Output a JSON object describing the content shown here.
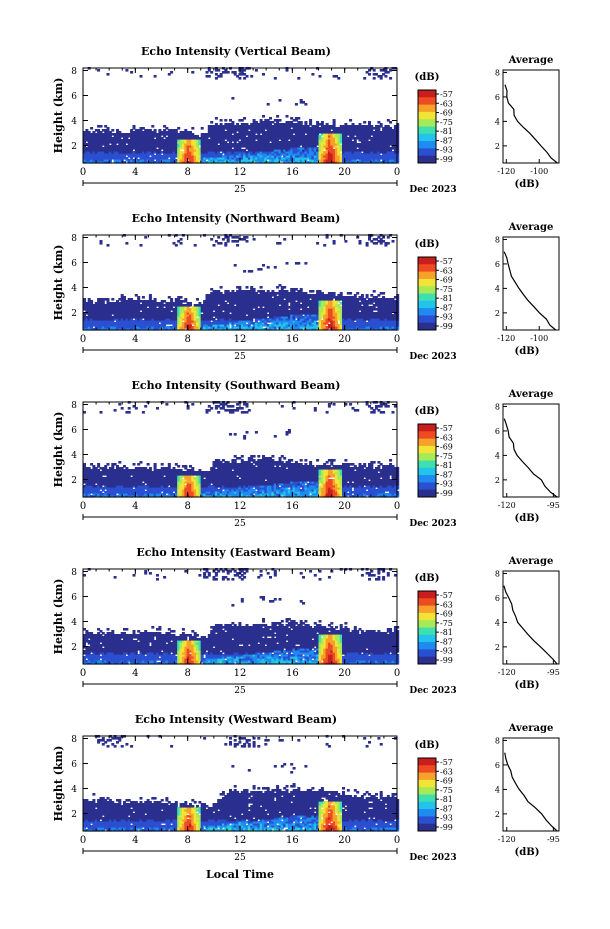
{
  "figure": {
    "date_label": "Dec 2023",
    "day_label": "25",
    "xlabel": "Local Time",
    "colorbar_unit": "(dB)",
    "colorbar_ticks": [
      "-57",
      "-63",
      "-69",
      "-75",
      "-81",
      "-87",
      "-93",
      "-99"
    ],
    "colorscale": [
      "#2b2f8e",
      "#2a4fd0",
      "#1f8bf0",
      "#22c4ec",
      "#3fe0b0",
      "#a7ea57",
      "#f2e437",
      "#f7a12a",
      "#ef4b22",
      "#c81e1e"
    ]
  },
  "chart_data": [
    {
      "type": "heatmap",
      "title": "Echo Intensity (Vertical Beam)",
      "ylabel": "Height (km)",
      "x_ticks": [
        "0",
        "4",
        "8",
        "12",
        "16",
        "20",
        "0"
      ],
      "y_ticks": [
        "2",
        "4",
        "6",
        "8"
      ],
      "xlim": [
        0,
        24
      ],
      "ylim": [
        0.6,
        8.2
      ],
      "clim": [
        -99,
        -57
      ],
      "cloud_top_km": [
        [
          0,
          3.0
        ],
        [
          6,
          3.1
        ],
        [
          9,
          2.8
        ],
        [
          10,
          3.6
        ],
        [
          15,
          3.9
        ],
        [
          20,
          3.5
        ],
        [
          24,
          3.4
        ]
      ],
      "intense_cores": [
        {
          "hour": 8.0,
          "top_km": 2.5
        },
        {
          "hour": 18.8,
          "top_km": 3.0
        }
      ],
      "upper_echo_hours": [
        [
          9,
          12.5
        ],
        [
          21.5,
          23.5
        ]
      ],
      "avg_profile": {
        "title": "Average",
        "xlabel": "(dB)",
        "x_ticks": [
          "-120",
          "-100"
        ],
        "xlim": [
          -122,
          -88
        ],
        "y_ticks": [
          "2",
          "4",
          "6",
          "8"
        ],
        "height_km": [
          0.6,
          1.0,
          1.5,
          2.0,
          2.5,
          3.0,
          3.5,
          4.0,
          4.5,
          5.0,
          5.5,
          6.0,
          6.5,
          7.0
        ],
        "value_db": [
          -89,
          -92,
          -95,
          -99,
          -102,
          -106,
          -109,
          -113,
          -115,
          -116,
          -118,
          -119,
          -120,
          -121
        ]
      }
    },
    {
      "type": "heatmap",
      "title": "Echo Intensity (Northward Beam)",
      "ylabel": "Height (km)",
      "x_ticks": [
        "0",
        "4",
        "8",
        "12",
        "16",
        "20",
        "0"
      ],
      "y_ticks": [
        "2",
        "4",
        "6",
        "8"
      ],
      "xlim": [
        0,
        24
      ],
      "ylim": [
        0.6,
        8.2
      ],
      "clim": [
        -99,
        -57
      ],
      "cloud_top_km": [
        [
          0,
          2.9
        ],
        [
          6,
          2.9
        ],
        [
          9,
          2.6
        ],
        [
          9.5,
          3.5
        ],
        [
          16,
          3.7
        ],
        [
          21,
          3.2
        ],
        [
          24,
          3.0
        ]
      ],
      "intense_cores": [
        {
          "hour": 8.0,
          "top_km": 2.4
        },
        {
          "hour": 18.8,
          "top_km": 2.9
        }
      ],
      "upper_echo_hours": [
        [
          10,
          12.5
        ],
        [
          21.5,
          23.5
        ]
      ],
      "avg_profile": {
        "title": "Average",
        "xlabel": "(dB)",
        "x_ticks": [
          "-120",
          "-100"
        ],
        "xlim": [
          -122,
          -88
        ],
        "y_ticks": [
          "2",
          "4",
          "6",
          "8"
        ],
        "height_km": [
          0.6,
          1.0,
          1.5,
          2.0,
          2.5,
          3.0,
          3.5,
          4.0,
          4.5,
          5.0,
          5.5,
          6.0,
          6.5,
          7.0
        ],
        "value_db": [
          -90,
          -93,
          -96,
          -100,
          -103,
          -107,
          -110,
          -113,
          -115,
          -117,
          -118,
          -119,
          -120,
          -121
        ]
      }
    },
    {
      "type": "heatmap",
      "title": "Echo Intensity (Southward Beam)",
      "ylabel": "Height (km)",
      "x_ticks": [
        "0",
        "4",
        "8",
        "12",
        "16",
        "20",
        "0"
      ],
      "y_ticks": [
        "2",
        "4",
        "6",
        "8"
      ],
      "xlim": [
        0,
        24
      ],
      "ylim": [
        0.6,
        8.2
      ],
      "clim": [
        -99,
        -57
      ],
      "cloud_top_km": [
        [
          0,
          2.9
        ],
        [
          6,
          2.8
        ],
        [
          9.5,
          2.6
        ],
        [
          10,
          3.4
        ],
        [
          14,
          3.5
        ],
        [
          18,
          3.1
        ],
        [
          24,
          3.0
        ]
      ],
      "intense_cores": [
        {
          "hour": 8.0,
          "top_km": 2.3
        },
        {
          "hour": 18.8,
          "top_km": 2.8
        }
      ],
      "upper_echo_hours": [
        [
          9,
          12.5
        ],
        [
          21.5,
          23.5
        ]
      ],
      "avg_profile": {
        "title": "Average",
        "xlabel": "(dB)",
        "x_ticks": [
          "-120",
          "-95"
        ],
        "xlim": [
          -122,
          -92
        ],
        "y_ticks": [
          "2",
          "4",
          "6",
          "8"
        ],
        "height_km": [
          0.6,
          1.0,
          1.5,
          2.0,
          2.5,
          3.0,
          3.5,
          4.0,
          4.5,
          5.0,
          5.5,
          6.0,
          6.5,
          7.0
        ],
        "value_db": [
          -93,
          -96,
          -99,
          -102,
          -105,
          -108,
          -111,
          -114,
          -116,
          -117,
          -118,
          -119,
          -120,
          -121
        ]
      }
    },
    {
      "type": "heatmap",
      "title": "Echo Intensity (Eastward Beam)",
      "ylabel": "Height (km)",
      "x_ticks": [
        "0",
        "4",
        "8",
        "12",
        "16",
        "20",
        "0"
      ],
      "y_ticks": [
        "2",
        "4",
        "6",
        "8"
      ],
      "xlim": [
        0,
        24
      ],
      "ylim": [
        0.6,
        8.2
      ],
      "clim": [
        -99,
        -57
      ],
      "cloud_top_km": [
        [
          0,
          3.0
        ],
        [
          6,
          3.0
        ],
        [
          9.5,
          2.7
        ],
        [
          10,
          3.6
        ],
        [
          16,
          3.8
        ],
        [
          21,
          3.2
        ],
        [
          24,
          3.2
        ]
      ],
      "intense_cores": [
        {
          "hour": 8.0,
          "top_km": 2.4
        },
        {
          "hour": 18.8,
          "top_km": 2.9
        }
      ],
      "upper_echo_hours": [
        [
          9,
          12.5
        ],
        [
          21.5,
          23.5
        ]
      ],
      "avg_profile": {
        "title": "Average",
        "xlabel": "(dB)",
        "x_ticks": [
          "-120",
          "-95"
        ],
        "xlim": [
          -122,
          -92
        ],
        "y_ticks": [
          "2",
          "4",
          "6",
          "8"
        ],
        "height_km": [
          0.6,
          1.0,
          1.5,
          2.0,
          2.5,
          3.0,
          3.5,
          4.0,
          4.5,
          5.0,
          5.5,
          6.0,
          6.5,
          7.0
        ],
        "value_db": [
          -93,
          -96,
          -99,
          -102,
          -105,
          -108,
          -111,
          -114,
          -116,
          -117,
          -118,
          -119,
          -120,
          -121
        ]
      }
    },
    {
      "type": "heatmap",
      "title": "Echo Intensity (Westward Beam)",
      "ylabel": "Height (km)",
      "x_ticks": [
        "0",
        "4",
        "8",
        "12",
        "16",
        "20",
        "0"
      ],
      "y_ticks": [
        "2",
        "4",
        "6",
        "8"
      ],
      "xlim": [
        0,
        24
      ],
      "ylim": [
        0.6,
        8.2
      ],
      "clim": [
        -99,
        -57
      ],
      "cloud_top_km": [
        [
          0,
          3.0
        ],
        [
          6,
          2.8
        ],
        [
          10,
          2.5
        ],
        [
          11,
          3.7
        ],
        [
          17,
          3.8
        ],
        [
          21,
          3.3
        ],
        [
          24,
          3.2
        ]
      ],
      "intense_cores": [
        {
          "hour": 8.0,
          "top_km": 2.4
        },
        {
          "hour": 18.8,
          "top_km": 2.9
        }
      ],
      "upper_echo_hours": [
        [
          11,
          13
        ],
        [
          1,
          3
        ]
      ],
      "avg_profile": {
        "title": "Average",
        "xlabel": "(dB)",
        "x_ticks": [
          "-120",
          "-95"
        ],
        "xlim": [
          -122,
          -92
        ],
        "y_ticks": [
          "2",
          "4",
          "6",
          "8"
        ],
        "height_km": [
          0.6,
          1.0,
          1.5,
          2.0,
          2.5,
          3.0,
          3.5,
          4.0,
          4.5,
          5.0,
          5.5,
          6.0,
          6.5,
          7.0
        ],
        "value_db": [
          -93,
          -96,
          -99,
          -102,
          -105,
          -108,
          -111,
          -114,
          -116,
          -117,
          -118,
          -119,
          -120,
          -121
        ]
      }
    }
  ]
}
